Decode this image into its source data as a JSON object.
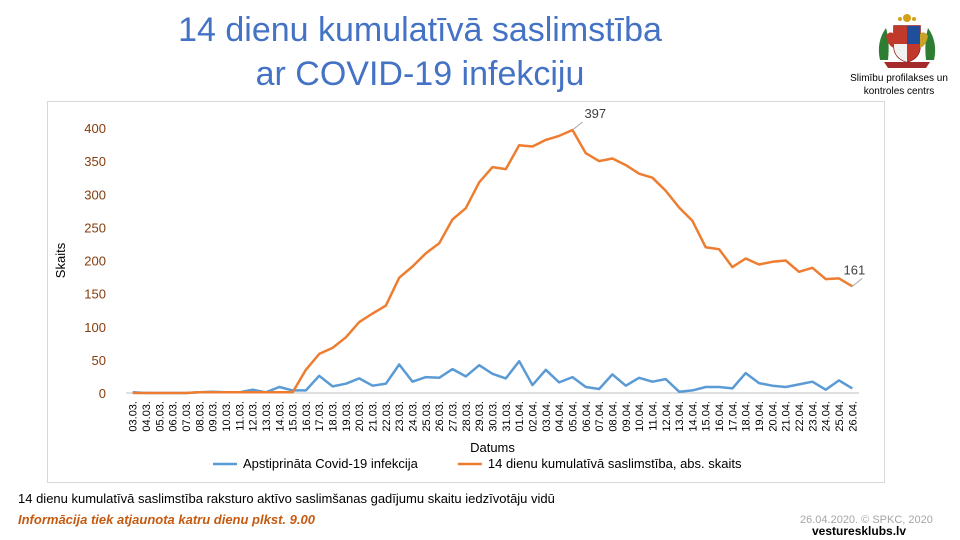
{
  "slide": {
    "title_line1": "14 dienu kumulatīvā saslimstība",
    "title_line2": "ar COVID-19 infekciju",
    "org_line1": "Slimību profilakses un",
    "org_line2": "kontroles centrs",
    "caption": "14 dienu kumulatīvā saslimstība raksturo aktīvo saslimšanas gadījumu skaitu iedzīvotāju vidū",
    "note": "Informācija tiek atjaunota katru dienu plkst. 9.00",
    "date_copyright": "26.04.2020. © SPKC, 2020",
    "watermark": "vesturesklubs.lv"
  },
  "chart_data": {
    "type": "line",
    "xlabel": "Datums",
    "ylabel": "Skaits",
    "ylim": [
      0,
      400
    ],
    "yticks": [
      0,
      50,
      100,
      150,
      200,
      250,
      300,
      350,
      400
    ],
    "grid": "none",
    "legend_position": "bottom",
    "categories": [
      "03.03.",
      "04.03.",
      "05.03.",
      "06.03.",
      "07.03.",
      "08.03.",
      "09.03.",
      "10.03.",
      "11.03.",
      "12.03.",
      "13.03.",
      "14.03.",
      "15.03.",
      "16.03.",
      "17.03.",
      "18.03.",
      "19.03.",
      "20.03.",
      "21.03.",
      "22.03.",
      "23.03.",
      "24.03.",
      "25.03.",
      "26.03.",
      "27.03.",
      "28.03.",
      "29.03.",
      "30.03.",
      "31.03.",
      "01.04.",
      "02.04.",
      "03.04.",
      "04.04.",
      "05.04.",
      "06.04.",
      "07.04.",
      "08.04.",
      "09.04.",
      "10.04.",
      "11.04.",
      "12.04.",
      "13.04.",
      "14.04.",
      "15.04.",
      "16.04.",
      "17.04.",
      "18.04.",
      "19.04.",
      "20.04.",
      "21.04.",
      "22.04.",
      "23.04.",
      "24.04.",
      "25.04.",
      "26.04."
    ],
    "series": [
      {
        "name": "Apstiprināta Covid-19 infekcija",
        "color": "#5b9bd5",
        "values": [
          1,
          0,
          0,
          0,
          0,
          1,
          2,
          1,
          1,
          5,
          1,
          9,
          4,
          4,
          26,
          10,
          14,
          22,
          11,
          14,
          43,
          17,
          24,
          23,
          36,
          25,
          42,
          29,
          22,
          48,
          12,
          35,
          16,
          24,
          9,
          6,
          28,
          11,
          23,
          17,
          21,
          2,
          4,
          9,
          9,
          7,
          30,
          15,
          11,
          9,
          13,
          17,
          5,
          19,
          7
        ]
      },
      {
        "name": "14 dienu kumulatīvā saslimstība, abs. skaits",
        "color": "#ed7d31",
        "values": [
          0,
          0,
          0,
          0,
          0,
          1,
          1,
          1,
          1,
          1,
          1,
          1,
          1,
          35,
          59,
          68,
          84,
          107,
          120,
          132,
          174,
          191,
          211,
          226,
          262,
          279,
          318,
          341,
          338,
          374,
          372,
          382,
          388,
          397,
          362,
          350,
          354,
          344,
          331,
          325,
          305,
          280,
          260,
          220,
          217,
          190,
          203,
          194,
          198,
          200,
          183,
          189,
          172,
          173,
          161
        ]
      }
    ],
    "annotations": [
      {
        "category": "05.04.",
        "series": 1,
        "text": "397"
      },
      {
        "category": "26.04.",
        "series": 1,
        "text": "161"
      }
    ]
  }
}
